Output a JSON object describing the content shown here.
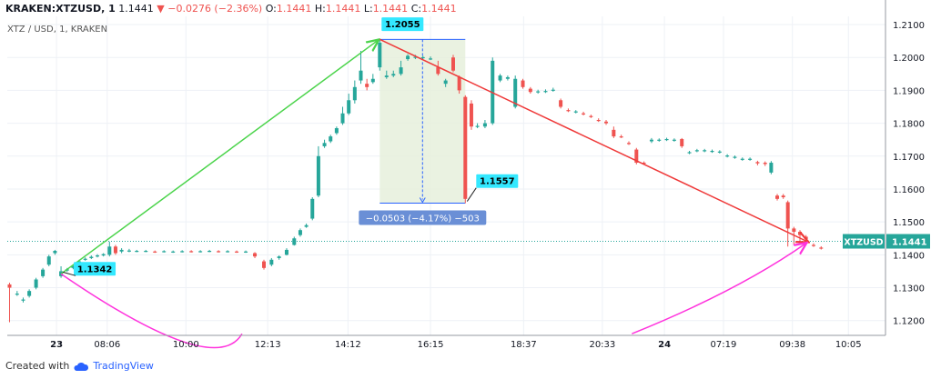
{
  "header": {
    "symbol": "KRAKEN:XTZUSD, 1",
    "last": "1.1441",
    "change": "−0.0276 (−2.36%)",
    "o_label": "O:",
    "o": "1.1441",
    "h_label": "H:",
    "h": "1.1441",
    "l_label": "L:",
    "l": "1.1441",
    "c_label": "C:",
    "c": "1.1441"
  },
  "subtitle": "XTZ / USD, 1, KRAKEN",
  "footer": {
    "created": "Created with",
    "brand": "TradingView"
  },
  "colors": {
    "up": "#26a69a",
    "down": "#ef5350",
    "green_arrow": "#4cd44c",
    "red_arrow": "#ef3a3a",
    "magenta": "#ff33dd",
    "callout": "#33e8ff",
    "measure_fill": "#e6f0dc",
    "measure_line": "#2962ff",
    "price_line": "#26a69a",
    "grid": "#eef1f6"
  },
  "chart_data": {
    "type": "candlestick",
    "ylim": [
      1.1155,
      1.2125
    ],
    "y_ticks": [
      "1.2100",
      "1.2000",
      "1.1900",
      "1.1800",
      "1.1700",
      "1.1600",
      "1.1500",
      "1.1400",
      "1.1300",
      "1.1200"
    ],
    "y_tick_values": [
      1.21,
      1.2,
      1.19,
      1.18,
      1.17,
      1.16,
      1.15,
      1.14,
      1.13,
      1.12
    ],
    "x_ticks": [
      "23",
      "08:06",
      "10:00",
      "12:13",
      "14:12",
      "16:15",
      "18:37",
      "20:33",
      "24",
      "07:19",
      "09:38",
      "10:05"
    ],
    "x_tick_positions": [
      0,
      0.67,
      1.71,
      2.79,
      3.85,
      4.94,
      6.17,
      7.21,
      8.03,
      8.81,
      9.72,
      10.46
    ],
    "xlim": [
      -0.65,
      10.95
    ],
    "last_price": 1.1441,
    "last_price_label": "1.1441",
    "symbol_tag": "XTZUSD",
    "candles": [
      {
        "t": -0.62,
        "o": 1.131,
        "c": 1.13,
        "h": 1.1315,
        "l": 1.1195
      },
      {
        "t": -0.52,
        "o": 1.128,
        "c": 1.1282,
        "h": 1.129,
        "l": 1.1275
      },
      {
        "t": -0.44,
        "o": 1.1262,
        "c": 1.1264,
        "h": 1.127,
        "l": 1.1255
      },
      {
        "t": -0.36,
        "o": 1.1275,
        "c": 1.129,
        "h": 1.1295,
        "l": 1.127
      },
      {
        "t": -0.27,
        "o": 1.13,
        "c": 1.1325,
        "h": 1.133,
        "l": 1.1295
      },
      {
        "t": -0.18,
        "o": 1.1335,
        "c": 1.1355,
        "h": 1.136,
        "l": 1.133
      },
      {
        "t": -0.1,
        "o": 1.137,
        "c": 1.1395,
        "h": 1.14,
        "l": 1.1365
      },
      {
        "t": -0.02,
        "o": 1.1405,
        "c": 1.1412,
        "h": 1.1415,
        "l": 1.14
      },
      {
        "t": 0.06,
        "o": 1.1335,
        "c": 1.135,
        "h": 1.1365,
        "l": 1.133
      },
      {
        "t": 0.14,
        "o": 1.1352,
        "c": 1.1356,
        "h": 1.136,
        "l": 1.1348
      },
      {
        "t": 0.22,
        "o": 1.136,
        "c": 1.1365,
        "h": 1.1368,
        "l": 1.1356
      },
      {
        "t": 0.3,
        "o": 1.137,
        "c": 1.138,
        "h": 1.1385,
        "l": 1.1368
      },
      {
        "t": 0.38,
        "o": 1.1385,
        "c": 1.1388,
        "h": 1.1392,
        "l": 1.1382
      },
      {
        "t": 0.46,
        "o": 1.139,
        "c": 1.1394,
        "h": 1.1398,
        "l": 1.1387
      },
      {
        "t": 0.54,
        "o": 1.1395,
        "c": 1.1398,
        "h": 1.1402,
        "l": 1.1392
      },
      {
        "t": 0.62,
        "o": 1.1398,
        "c": 1.1402,
        "h": 1.1405,
        "l": 1.1395
      },
      {
        "t": 0.7,
        "o": 1.14,
        "c": 1.1425,
        "h": 1.144,
        "l": 1.1395
      },
      {
        "t": 0.78,
        "o": 1.1425,
        "c": 1.1405,
        "h": 1.143,
        "l": 1.14
      },
      {
        "t": 0.86,
        "o": 1.141,
        "c": 1.1415,
        "h": 1.142,
        "l": 1.1405
      },
      {
        "t": 0.96,
        "o": 1.1412,
        "c": 1.1413,
        "h": 1.1418,
        "l": 1.1408
      },
      {
        "t": 1.06,
        "o": 1.1411,
        "c": 1.1412,
        "h": 1.1415,
        "l": 1.1408
      },
      {
        "t": 1.18,
        "o": 1.1411,
        "c": 1.1412,
        "h": 1.1415,
        "l": 1.1408
      },
      {
        "t": 1.3,
        "o": 1.141,
        "c": 1.1409,
        "h": 1.1413,
        "l": 1.1406
      },
      {
        "t": 1.42,
        "o": 1.141,
        "c": 1.1411,
        "h": 1.1414,
        "l": 1.1407
      },
      {
        "t": 1.54,
        "o": 1.1409,
        "c": 1.141,
        "h": 1.1413,
        "l": 1.1406
      },
      {
        "t": 1.66,
        "o": 1.141,
        "c": 1.1411,
        "h": 1.1414,
        "l": 1.1407
      },
      {
        "t": 1.78,
        "o": 1.1411,
        "c": 1.141,
        "h": 1.1414,
        "l": 1.1407
      },
      {
        "t": 1.9,
        "o": 1.141,
        "c": 1.1411,
        "h": 1.1414,
        "l": 1.1407
      },
      {
        "t": 2.02,
        "o": 1.1411,
        "c": 1.1412,
        "h": 1.1415,
        "l": 1.1408
      },
      {
        "t": 2.14,
        "o": 1.1411,
        "c": 1.141,
        "h": 1.1414,
        "l": 1.1407
      },
      {
        "t": 2.26,
        "o": 1.141,
        "c": 1.1411,
        "h": 1.1414,
        "l": 1.1407
      },
      {
        "t": 2.38,
        "o": 1.141,
        "c": 1.1409,
        "h": 1.1413,
        "l": 1.1406
      },
      {
        "t": 2.5,
        "o": 1.1409,
        "c": 1.141,
        "h": 1.1413,
        "l": 1.1406
      },
      {
        "t": 2.62,
        "o": 1.1405,
        "c": 1.1395,
        "h": 1.1408,
        "l": 1.139
      },
      {
        "t": 2.74,
        "o": 1.138,
        "c": 1.136,
        "h": 1.1385,
        "l": 1.1355
      },
      {
        "t": 2.84,
        "o": 1.137,
        "c": 1.1385,
        "h": 1.139,
        "l": 1.1365
      },
      {
        "t": 2.94,
        "o": 1.139,
        "c": 1.1395,
        "h": 1.1398,
        "l": 1.1385
      },
      {
        "t": 3.04,
        "o": 1.14,
        "c": 1.1415,
        "h": 1.142,
        "l": 1.1398
      },
      {
        "t": 3.14,
        "o": 1.143,
        "c": 1.145,
        "h": 1.1455,
        "l": 1.1428
      },
      {
        "t": 3.22,
        "o": 1.146,
        "c": 1.1475,
        "h": 1.148,
        "l": 1.1455
      },
      {
        "t": 3.3,
        "o": 1.1485,
        "c": 1.149,
        "h": 1.1495,
        "l": 1.1482
      },
      {
        "t": 3.38,
        "o": 1.151,
        "c": 1.157,
        "h": 1.1575,
        "l": 1.1505
      },
      {
        "t": 3.46,
        "o": 1.158,
        "c": 1.17,
        "h": 1.173,
        "l": 1.1575
      },
      {
        "t": 3.54,
        "o": 1.173,
        "c": 1.174,
        "h": 1.175,
        "l": 1.1725
      },
      {
        "t": 3.62,
        "o": 1.1745,
        "c": 1.176,
        "h": 1.1765,
        "l": 1.174
      },
      {
        "t": 3.7,
        "o": 1.177,
        "c": 1.1785,
        "h": 1.179,
        "l": 1.1765
      },
      {
        "t": 3.78,
        "o": 1.18,
        "c": 1.183,
        "h": 1.185,
        "l": 1.1795
      },
      {
        "t": 3.86,
        "o": 1.183,
        "c": 1.187,
        "h": 1.189,
        "l": 1.1825
      },
      {
        "t": 3.94,
        "o": 1.187,
        "c": 1.191,
        "h": 1.193,
        "l": 1.186
      },
      {
        "t": 4.02,
        "o": 1.193,
        "c": 1.196,
        "h": 1.202,
        "l": 1.192
      },
      {
        "t": 4.1,
        "o": 1.192,
        "c": 1.191,
        "h": 1.1935,
        "l": 1.19
      },
      {
        "t": 4.18,
        "o": 1.1925,
        "c": 1.1935,
        "h": 1.195,
        "l": 1.192
      },
      {
        "t": 4.27,
        "o": 1.197,
        "c": 1.2045,
        "h": 1.2055,
        "l": 1.196
      },
      {
        "t": 4.36,
        "o": 1.194,
        "c": 1.1945,
        "h": 1.196,
        "l": 1.1935
      },
      {
        "t": 4.45,
        "o": 1.1945,
        "c": 1.195,
        "h": 1.196,
        "l": 1.194
      },
      {
        "t": 4.55,
        "o": 1.195,
        "c": 1.197,
        "h": 1.199,
        "l": 1.1945
      },
      {
        "t": 4.64,
        "o": 1.1995,
        "c": 1.2005,
        "h": 1.201,
        "l": 1.199
      },
      {
        "t": 4.74,
        "o": 1.2,
        "c": 1.2002,
        "h": 1.2008,
        "l": 1.1995
      },
      {
        "t": 4.84,
        "o": 1.2,
        "c": 1.2001,
        "h": 1.2005,
        "l": 1.1995
      },
      {
        "t": 4.94,
        "o": 1.1995,
        "c": 1.1997,
        "h": 1.2003,
        "l": 1.1992
      },
      {
        "t": 5.04,
        "o": 1.197,
        "c": 1.195,
        "h": 1.199,
        "l": 1.1945
      },
      {
        "t": 5.14,
        "o": 1.192,
        "c": 1.193,
        "h": 1.1935,
        "l": 1.191
      },
      {
        "t": 5.24,
        "o": 1.2,
        "c": 1.196,
        "h": 1.2008,
        "l": 1.1955
      },
      {
        "t": 5.32,
        "o": 1.194,
        "c": 1.19,
        "h": 1.1945,
        "l": 1.189
      },
      {
        "t": 5.4,
        "o": 1.188,
        "c": 1.157,
        "h": 1.1885,
        "l": 1.1557
      },
      {
        "t": 5.48,
        "o": 1.186,
        "c": 1.179,
        "h": 1.187,
        "l": 1.178
      },
      {
        "t": 5.56,
        "o": 1.179,
        "c": 1.1792,
        "h": 1.18,
        "l": 1.1785
      },
      {
        "t": 5.66,
        "o": 1.179,
        "c": 1.18,
        "h": 1.181,
        "l": 1.1785
      },
      {
        "t": 5.76,
        "o": 1.18,
        "c": 1.199,
        "h": 1.2,
        "l": 1.1795
      },
      {
        "t": 5.86,
        "o": 1.193,
        "c": 1.1945,
        "h": 1.195,
        "l": 1.1925
      },
      {
        "t": 5.96,
        "o": 1.1935,
        "c": 1.194,
        "h": 1.1945,
        "l": 1.193
      },
      {
        "t": 6.06,
        "o": 1.185,
        "c": 1.1935,
        "h": 1.1945,
        "l": 1.1845
      },
      {
        "t": 6.16,
        "o": 1.193,
        "c": 1.191,
        "h": 1.1935,
        "l": 1.1905
      },
      {
        "t": 6.26,
        "o": 1.1905,
        "c": 1.1895,
        "h": 1.191,
        "l": 1.189
      },
      {
        "t": 6.36,
        "o": 1.1895,
        "c": 1.1897,
        "h": 1.1902,
        "l": 1.189
      },
      {
        "t": 6.46,
        "o": 1.1896,
        "c": 1.1898,
        "h": 1.1903,
        "l": 1.1892
      },
      {
        "t": 6.56,
        "o": 1.19,
        "c": 1.1902,
        "h": 1.1908,
        "l": 1.1896
      },
      {
        "t": 6.66,
        "o": 1.187,
        "c": 1.185,
        "h": 1.1875,
        "l": 1.1845
      },
      {
        "t": 6.76,
        "o": 1.184,
        "c": 1.1838,
        "h": 1.1845,
        "l": 1.1834
      },
      {
        "t": 6.86,
        "o": 1.1835,
        "c": 1.1836,
        "h": 1.184,
        "l": 1.183
      },
      {
        "t": 6.96,
        "o": 1.183,
        "c": 1.1828,
        "h": 1.1835,
        "l": 1.1824
      },
      {
        "t": 7.06,
        "o": 1.1822,
        "c": 1.182,
        "h": 1.1826,
        "l": 1.1816
      },
      {
        "t": 7.16,
        "o": 1.181,
        "c": 1.1808,
        "h": 1.1815,
        "l": 1.1804
      },
      {
        "t": 7.26,
        "o": 1.1805,
        "c": 1.18,
        "h": 1.181,
        "l": 1.1795
      },
      {
        "t": 7.36,
        "o": 1.178,
        "c": 1.176,
        "h": 1.179,
        "l": 1.1755
      },
      {
        "t": 7.46,
        "o": 1.176,
        "c": 1.1758,
        "h": 1.1765,
        "l": 1.1755
      },
      {
        "t": 7.56,
        "o": 1.174,
        "c": 1.1738,
        "h": 1.1745,
        "l": 1.1734
      },
      {
        "t": 7.66,
        "o": 1.172,
        "c": 1.168,
        "h": 1.1725,
        "l": 1.1675
      },
      {
        "t": 7.76,
        "o": 1.168,
        "c": 1.1678,
        "h": 1.1684,
        "l": 1.1674
      },
      {
        "t": 7.86,
        "o": 1.1745,
        "c": 1.175,
        "h": 1.1755,
        "l": 1.174
      },
      {
        "t": 7.96,
        "o": 1.1748,
        "c": 1.175,
        "h": 1.1754,
        "l": 1.1744
      },
      {
        "t": 8.06,
        "o": 1.175,
        "c": 1.1752,
        "h": 1.1756,
        "l": 1.1746
      },
      {
        "t": 8.16,
        "o": 1.1748,
        "c": 1.175,
        "h": 1.1754,
        "l": 1.1744
      },
      {
        "t": 8.26,
        "o": 1.1752,
        "c": 1.173,
        "h": 1.1755,
        "l": 1.1725
      },
      {
        "t": 8.36,
        "o": 1.171,
        "c": 1.1712,
        "h": 1.1716,
        "l": 1.1706
      },
      {
        "t": 8.46,
        "o": 1.1716,
        "c": 1.1718,
        "h": 1.1722,
        "l": 1.1712
      },
      {
        "t": 8.56,
        "o": 1.1716,
        "c": 1.1718,
        "h": 1.1722,
        "l": 1.1712
      },
      {
        "t": 8.66,
        "o": 1.1714,
        "c": 1.1716,
        "h": 1.172,
        "l": 1.171
      },
      {
        "t": 8.76,
        "o": 1.1712,
        "c": 1.1714,
        "h": 1.1718,
        "l": 1.1708
      },
      {
        "t": 8.86,
        "o": 1.17,
        "c": 1.1702,
        "h": 1.1706,
        "l": 1.1696
      },
      {
        "t": 8.96,
        "o": 1.1696,
        "c": 1.1698,
        "h": 1.1702,
        "l": 1.1692
      },
      {
        "t": 9.06,
        "o": 1.169,
        "c": 1.1692,
        "h": 1.1696,
        "l": 1.1686
      },
      {
        "t": 9.16,
        "o": 1.169,
        "c": 1.1692,
        "h": 1.1696,
        "l": 1.1686
      },
      {
        "t": 9.26,
        "o": 1.1682,
        "c": 1.1678,
        "h": 1.1686,
        "l": 1.1672
      },
      {
        "t": 9.36,
        "o": 1.168,
        "c": 1.1676,
        "h": 1.1684,
        "l": 1.167
      },
      {
        "t": 9.44,
        "o": 1.165,
        "c": 1.168,
        "h": 1.1685,
        "l": 1.1645
      },
      {
        "t": 9.52,
        "o": 1.158,
        "c": 1.157,
        "h": 1.1585,
        "l": 1.1565
      },
      {
        "t": 9.6,
        "o": 1.158,
        "c": 1.1575,
        "h": 1.1585,
        "l": 1.157
      },
      {
        "t": 9.66,
        "o": 1.156,
        "c": 1.148,
        "h": 1.1565,
        "l": 1.1425
      },
      {
        "t": 9.74,
        "o": 1.148,
        "c": 1.147,
        "h": 1.1485,
        "l": 1.143
      },
      {
        "t": 9.82,
        "o": 1.147,
        "c": 1.146,
        "h": 1.1475,
        "l": 1.144
      },
      {
        "t": 9.9,
        "o": 1.1455,
        "c": 1.1448,
        "h": 1.146,
        "l": 1.144
      },
      {
        "t": 10.0,
        "o": 1.143,
        "c": 1.1428,
        "h": 1.1435,
        "l": 1.1424
      },
      {
        "t": 10.1,
        "o": 1.1422,
        "c": 1.142,
        "h": 1.1426,
        "l": 1.1416
      }
    ],
    "annotations": {
      "low_label": "1.1342",
      "high_label": "1.1557",
      "peak_label": "1.2055",
      "measure_label": "−0.0503 (−4.17%) −503"
    }
  }
}
